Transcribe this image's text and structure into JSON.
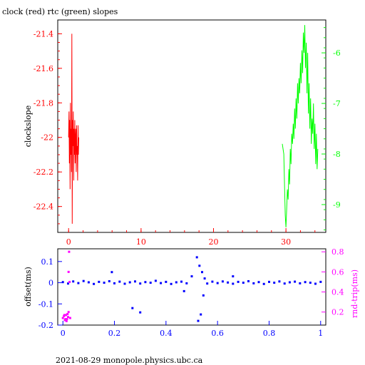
{
  "title": "clock (red) rtc (green) slopes",
  "footer": "2021-08-29  monopole.physics.ubc.ca",
  "colors": {
    "clock": "#ff0000",
    "rtc": "#00ff00",
    "offset": "#0000ff",
    "rndtrip": "#ff00ff",
    "axis": "#000000"
  },
  "chart_data": [
    {
      "type": "line",
      "title": "clock (red) rtc (green) slopes",
      "ylabel": "clockslope",
      "xlim": [
        -1.5,
        35.5
      ],
      "ylim": [
        -22.55,
        -21.32
      ],
      "ylim_right": [
        -9.55,
        -5.35
      ],
      "x_ticks": [
        0,
        10,
        20,
        30
      ],
      "x_tick_labels": [
        "0",
        "10",
        "20",
        "30"
      ],
      "y_ticks": [
        -21.4,
        -21.6,
        -21.8,
        -22,
        -22.2,
        -22.4
      ],
      "y_tick_labels": [
        "-21.4",
        "-21.6",
        "-21.8",
        "-22",
        "-22.2",
        "-22.4"
      ],
      "y_right_ticks": [
        -6,
        -7,
        -8,
        -9
      ],
      "y_right_tick_labels": [
        "-6",
        "-7",
        "-8",
        "-9"
      ],
      "grid": false,
      "series": [
        {
          "name": "clock",
          "axis": "left",
          "x": [
            0.0,
            0.05,
            0.1,
            0.15,
            0.2,
            0.25,
            0.3,
            0.35,
            0.4,
            0.45,
            0.5,
            0.55,
            0.6,
            0.65,
            0.7,
            0.75,
            0.8,
            0.85,
            0.9,
            0.95,
            1.0,
            1.05,
            1.1,
            1.15,
            1.2,
            1.25,
            1.3,
            1.35,
            1.4
          ],
          "y": [
            -22.0,
            -21.85,
            -22.15,
            -21.9,
            -22.3,
            -21.8,
            -22.1,
            -21.95,
            -22.2,
            -21.4,
            -22.5,
            -21.9,
            -22.05,
            -21.85,
            -22.25,
            -21.95,
            -22.1,
            -21.9,
            -22.15,
            -22.0,
            -21.95,
            -22.2,
            -21.93,
            -22.1,
            -22.05,
            -22.25,
            -21.93,
            -22.1,
            -22.0
          ]
        },
        {
          "name": "rtc",
          "axis": "right",
          "x": [
            29.5,
            29.7,
            29.9,
            30.0,
            30.1,
            30.2,
            30.3,
            30.4,
            30.5,
            30.6,
            30.7,
            30.8,
            30.9,
            31.0,
            31.1,
            31.2,
            31.3,
            31.4,
            31.5,
            31.6,
            31.7,
            31.8,
            31.9,
            32.0,
            32.1,
            32.2,
            32.3,
            32.4,
            32.5,
            32.6,
            32.7,
            32.8,
            32.9,
            33.0,
            33.1,
            33.2,
            33.3,
            33.4,
            33.5,
            33.6,
            33.7,
            33.8,
            33.9,
            34.0,
            34.1,
            34.2,
            34.3,
            34.4
          ],
          "y": [
            -7.8,
            -8.0,
            -9.2,
            -9.45,
            -9.1,
            -8.7,
            -8.9,
            -8.3,
            -8.6,
            -7.9,
            -8.2,
            -7.6,
            -7.8,
            -7.4,
            -7.7,
            -7.1,
            -7.5,
            -6.9,
            -7.3,
            -6.6,
            -7.0,
            -6.5,
            -6.8,
            -6.2,
            -6.6,
            -5.95,
            -6.4,
            -5.6,
            -6.0,
            -5.45,
            -6.3,
            -5.8,
            -6.8,
            -6.0,
            -7.2,
            -6.6,
            -7.5,
            -6.9,
            -7.8,
            -7.3,
            -7.6,
            -7.0,
            -7.9,
            -7.4,
            -8.2,
            -7.6,
            -8.3,
            -7.9
          ]
        }
      ]
    },
    {
      "type": "scatter",
      "ylabel": "offset(ms)",
      "ylabel_right": "rnd-trip(ms)",
      "xlim": [
        -0.02,
        1.02
      ],
      "ylim": [
        -0.2,
        0.16
      ],
      "ylim_right": [
        0.07,
        0.83
      ],
      "x_ticks": [
        0,
        0.2,
        0.4,
        0.6,
        0.8,
        1
      ],
      "x_tick_labels": [
        "0",
        "0.2",
        "0.4",
        "0.6",
        "0.8",
        "1"
      ],
      "y_ticks": [
        0.1,
        0,
        -0.1,
        -0.2
      ],
      "y_tick_labels": [
        "0.1",
        "0",
        "-0.1",
        "-0.2"
      ],
      "y_right_ticks": [
        0.8,
        0.6,
        0.4,
        0.2
      ],
      "y_right_tick_labels": [
        "0.8",
        "0.6",
        "0.4",
        "0.2"
      ],
      "grid": false,
      "series": [
        {
          "name": "offset",
          "axis": "left",
          "x": [
            0.0,
            0.02,
            0.04,
            0.06,
            0.08,
            0.1,
            0.12,
            0.14,
            0.16,
            0.18,
            0.2,
            0.22,
            0.24,
            0.26,
            0.28,
            0.3,
            0.32,
            0.34,
            0.36,
            0.38,
            0.4,
            0.42,
            0.44,
            0.46,
            0.48,
            0.5,
            0.52,
            0.525,
            0.53,
            0.535,
            0.54,
            0.545,
            0.55,
            0.56,
            0.58,
            0.6,
            0.62,
            0.64,
            0.66,
            0.68,
            0.7,
            0.72,
            0.74,
            0.76,
            0.78,
            0.8,
            0.82,
            0.84,
            0.86,
            0.88,
            0.9,
            0.92,
            0.94,
            0.96,
            0.98,
            1.0,
            0.3,
            0.27,
            0.19,
            0.66,
            0.47
          ],
          "y": [
            0.003,
            -0.004,
            0.006,
            -0.002,
            0.008,
            0.002,
            -0.006,
            0.004,
            0.0,
            0.007,
            -0.003,
            0.005,
            -0.005,
            0.002,
            0.006,
            -0.004,
            0.003,
            0.0,
            0.009,
            -0.002,
            0.004,
            -0.006,
            0.002,
            0.005,
            -0.003,
            0.03,
            0.12,
            -0.18,
            0.08,
            -0.15,
            0.05,
            -0.06,
            0.02,
            -0.004,
            0.005,
            -0.002,
            0.006,
            0.001,
            -0.005,
            0.004,
            0.0,
            0.007,
            -0.003,
            0.003,
            -0.006,
            0.004,
            0.0,
            0.006,
            -0.004,
            0.002,
            0.005,
            -0.003,
            0.003,
            0.0,
            -0.005,
            0.004,
            -0.14,
            -0.12,
            0.05,
            0.03,
            -0.04
          ]
        },
        {
          "name": "rnd-trip",
          "axis": "right",
          "x": [
            0.0,
            0.004,
            0.008,
            0.012,
            0.016,
            0.02,
            0.022,
            0.024,
            0.026,
            0.028,
            0.018,
            0.014,
            0.006,
            0.01,
            0.022
          ],
          "y": [
            0.14,
            0.16,
            0.12,
            0.17,
            0.13,
            0.15,
            0.2,
            0.8,
            0.5,
            0.14,
            0.18,
            0.11,
            0.17,
            0.13,
            0.6
          ]
        }
      ]
    }
  ]
}
